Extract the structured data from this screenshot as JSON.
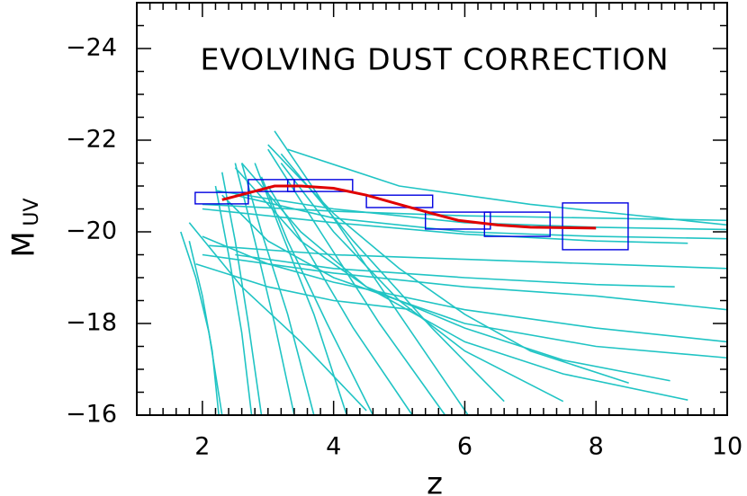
{
  "chart_data": {
    "type": "line",
    "annotation": "EVOLVING DUST CORRECTION",
    "xlabel": "z",
    "ylabel": {
      "main": "M",
      "sub": "UV"
    },
    "xlim": [
      1,
      10
    ],
    "ylim": [
      -16,
      -25
    ],
    "xticks": [
      2,
      4,
      6,
      8,
      10
    ],
    "yticks": [
      {
        "value": -24,
        "label": "−24"
      },
      {
        "value": -22,
        "label": "−22"
      },
      {
        "value": -20,
        "label": "−20"
      },
      {
        "value": -18,
        "label": "−18"
      },
      {
        "value": -16,
        "label": "−16"
      }
    ],
    "xminorticks": [
      1.2,
      1.4,
      1.6,
      1.8,
      2.2,
      2.4,
      2.6,
      2.8,
      3,
      3.2,
      3.4,
      3.6,
      3.8,
      4.2,
      4.4,
      4.6,
      4.8,
      5,
      5.2,
      5.4,
      5.6,
      5.8,
      6.2,
      6.4,
      6.6,
      6.8,
      7,
      7.2,
      7.4,
      7.6,
      7.8,
      8.2,
      8.4,
      8.6,
      8.8,
      9,
      9.2,
      9.4,
      9.6,
      9.8
    ],
    "yminorticks": [
      -16.5,
      -17,
      -17.5,
      -18.5,
      -19,
      -19.5,
      -20.5,
      -21,
      -21.5,
      -22.5,
      -23,
      -23.5,
      -24.5
    ],
    "track_color": "#20c4c4",
    "tracks": [
      {
        "x": [
          1.67,
          1.9,
          2.1,
          2.3
        ],
        "values": [
          -20.0,
          -19.0,
          -17.8,
          -16.0
        ]
      },
      {
        "x": [
          1.8,
          2.0,
          2.15,
          2.25
        ],
        "values": [
          -19.8,
          -18.6,
          -17.4,
          -16.0
        ]
      },
      {
        "x": [
          2.2,
          2.4,
          2.6,
          2.75
        ],
        "values": [
          -21.0,
          -19.5,
          -17.8,
          -16.0
        ]
      },
      {
        "x": [
          2.3,
          2.5,
          2.7,
          2.9
        ],
        "values": [
          -21.3,
          -19.8,
          -18.0,
          -16.0
        ]
      },
      {
        "x": [
          2.5,
          2.8,
          3.1,
          3.4
        ],
        "values": [
          -21.5,
          -19.8,
          -18.0,
          -16.0
        ]
      },
      {
        "x": [
          2.6,
          2.9,
          3.3,
          3.7
        ],
        "values": [
          -21.5,
          -20.0,
          -18.2,
          -16.0
        ]
      },
      {
        "x": [
          2.8,
          3.2,
          3.7,
          4.2
        ],
        "values": [
          -21.5,
          -20.0,
          -18.2,
          -16.0
        ]
      },
      {
        "x": [
          2.9,
          3.3,
          3.9,
          4.6
        ],
        "values": [
          -21.2,
          -19.8,
          -18.0,
          -16.0
        ]
      },
      {
        "x": [
          3.0,
          3.6,
          4.3,
          5.2
        ],
        "values": [
          -21.0,
          -19.6,
          -17.9,
          -16.0
        ]
      },
      {
        "x": [
          3.0,
          3.8,
          4.7,
          5.7
        ],
        "values": [
          -21.8,
          -20.0,
          -18.0,
          -16.0
        ]
      },
      {
        "x": [
          3.1,
          4.0,
          5.0,
          6.05
        ],
        "values": [
          -22.2,
          -20.3,
          -18.2,
          -16.0
        ]
      },
      {
        "x": [
          3.2,
          4.3,
          5.5,
          6.6
        ],
        "values": [
          -21.7,
          -19.8,
          -17.9,
          -16.3
        ]
      },
      {
        "x": [
          1.8,
          2.6,
          3.5,
          4.5
        ],
        "values": [
          -20.2,
          -18.8,
          -17.6,
          -16.1
        ]
      },
      {
        "x": [
          2.0,
          4,
          6,
          8,
          10
        ],
        "values": [
          -20.6,
          -20.45,
          -20.35,
          -20.3,
          -20.25
        ]
      },
      {
        "x": [
          2.2,
          4,
          6,
          8,
          10
        ],
        "values": [
          -20.9,
          -20.5,
          -20.2,
          -20.1,
          -20.05
        ]
      },
      {
        "x": [
          2.5,
          4,
          6,
          8,
          10
        ],
        "values": [
          -20.8,
          -20.3,
          -20.0,
          -19.9,
          -19.85
        ]
      },
      {
        "x": [
          2.0,
          4,
          6,
          8,
          9.4
        ],
        "values": [
          -20.5,
          -20.2,
          -19.95,
          -19.8,
          -19.75
        ]
      },
      {
        "x": [
          3.3,
          5,
          7,
          10
        ],
        "values": [
          -21.8,
          -21.0,
          -20.6,
          -20.15
        ]
      },
      {
        "x": [
          2.1,
          4,
          6,
          8,
          10
        ],
        "values": [
          -19.7,
          -19.5,
          -19.4,
          -19.3,
          -19.2
        ]
      },
      {
        "x": [
          2.0,
          4,
          6,
          8,
          10
        ],
        "values": [
          -19.5,
          -19.1,
          -18.8,
          -18.6,
          -18.3
        ]
      },
      {
        "x": [
          2.5,
          4,
          6,
          8,
          9.2
        ],
        "values": [
          -19.5,
          -19.2,
          -19.0,
          -18.85,
          -18.8
        ]
      },
      {
        "x": [
          2.0,
          3,
          4,
          6,
          8,
          10
        ],
        "values": [
          -19.9,
          -19.3,
          -18.9,
          -18.3,
          -17.9,
          -17.6
        ]
      },
      {
        "x": [
          2.3,
          3,
          4,
          6,
          8,
          10
        ],
        "values": [
          -20.8,
          -19.8,
          -19.0,
          -18.0,
          -17.5,
          -17.25
        ]
      },
      {
        "x": [
          2.5,
          3.5,
          4.5,
          6,
          7.5,
          9.13
        ],
        "values": [
          -21.4,
          -19.8,
          -18.8,
          -17.9,
          -17.2,
          -16.75
        ]
      },
      {
        "x": [
          2.6,
          3.5,
          4.5,
          6,
          7.5,
          9.4
        ],
        "values": [
          -21.5,
          -20.0,
          -18.8,
          -17.6,
          -16.9,
          -16.33
        ]
      },
      {
        "x": [
          3.0,
          4,
          5,
          6,
          7,
          8.5
        ],
        "values": [
          -21.9,
          -20.4,
          -19.2,
          -18.2,
          -17.4,
          -16.7
        ]
      },
      {
        "x": [
          3.2,
          4,
          5,
          6,
          7.5
        ],
        "values": [
          -21.5,
          -20.0,
          -18.5,
          -17.4,
          -16.3
        ]
      },
      {
        "x": [
          1.9,
          3,
          4,
          5.2
        ],
        "values": [
          -19.3,
          -18.8,
          -18.5,
          -18.3
        ]
      }
    ],
    "box_color": "#0000e0",
    "boxes": [
      {
        "x": [
          1.89,
          2.7
        ],
        "values": [
          -20.61,
          -20.86
        ]
      },
      {
        "x": [
          2.7,
          4.29
        ],
        "values": [
          -20.88,
          -21.14
        ]
      },
      {
        "x": [
          3.3,
          3.4
        ],
        "values": [
          -20.88,
          -21.14
        ]
      },
      {
        "x": [
          4.5,
          5.51
        ],
        "values": [
          -20.53,
          -20.8
        ]
      },
      {
        "x": [
          5.4,
          6.39
        ],
        "values": [
          -20.06,
          -20.43
        ]
      },
      {
        "x": [
          6.3,
          7.3
        ],
        "values": [
          -19.9,
          -20.43
        ]
      },
      {
        "x": [
          7.49,
          8.49
        ],
        "values": [
          -19.61,
          -20.63
        ]
      }
    ],
    "series": [
      {
        "color": "#e00000",
        "x": [
          2.3,
          2.7,
          3.1,
          3.5,
          4.0,
          4.5,
          5.0,
          5.5,
          5.9,
          6.5,
          7.0,
          8.0
        ],
        "values": [
          -20.7,
          -20.85,
          -21.0,
          -21.0,
          -20.95,
          -20.8,
          -20.6,
          -20.4,
          -20.25,
          -20.15,
          -20.1,
          -20.08
        ]
      }
    ]
  }
}
